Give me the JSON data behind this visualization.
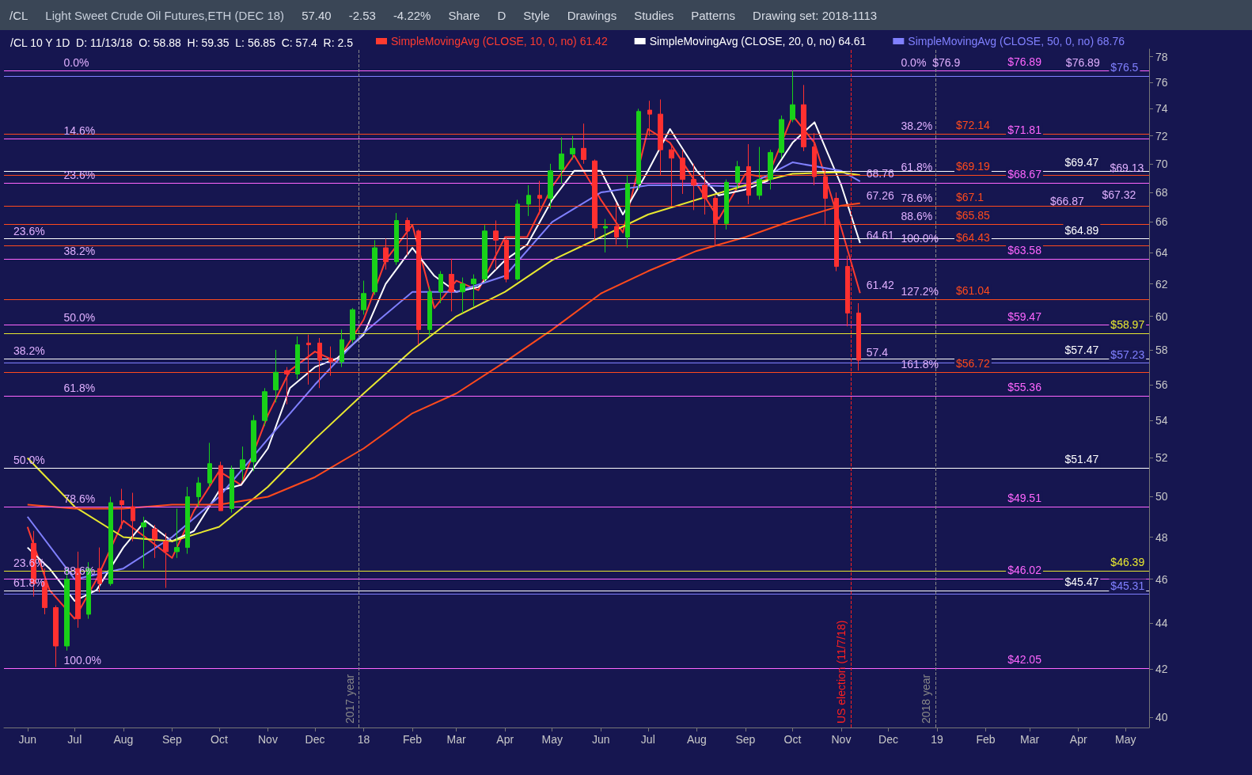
{
  "chart_data": {
    "type": "candlestick",
    "title": "Light Sweet Crude Oil Futures,ETH (DEC 18)",
    "subtitle": "/CL 10 Y 1D  D: 11/13/18  O: 58.88  H: 59.35  L: 56.85  C: 57.4  R: 2.5",
    "log": "y",
    "grid": false,
    "legend": "top",
    "xlim": [
      "2017-05-17",
      "2019-05-16"
    ],
    "xticks": [
      {
        "value": "2017-06-01",
        "label": "Jun"
      },
      {
        "value": "2017-07-01",
        "label": "Jul"
      },
      {
        "value": "2017-08-01",
        "label": "Aug"
      },
      {
        "value": "2017-09-01",
        "label": "Sep"
      },
      {
        "value": "2017-10-01",
        "label": "Oct"
      },
      {
        "value": "2017-11-01",
        "label": "Nov"
      },
      {
        "value": "2017-12-01",
        "label": "Dec"
      },
      {
        "value": "2018-01-01",
        "label": "18"
      },
      {
        "value": "2018-02-01",
        "label": "Feb"
      },
      {
        "value": "2018-03-01",
        "label": "Mar"
      },
      {
        "value": "2018-04-01",
        "label": "Apr"
      },
      {
        "value": "2018-05-01",
        "label": "May"
      },
      {
        "value": "2018-06-01",
        "label": "Jun"
      },
      {
        "value": "2018-07-01",
        "label": "Jul"
      },
      {
        "value": "2018-08-01",
        "label": "Aug"
      },
      {
        "value": "2018-09-01",
        "label": "Sep"
      },
      {
        "value": "2018-10-01",
        "label": "Oct"
      },
      {
        "value": "2018-11-01",
        "label": "Nov"
      },
      {
        "value": "2018-12-01",
        "label": "Dec"
      },
      {
        "value": "2019-01-01",
        "label": "19"
      },
      {
        "value": "2019-02-01",
        "label": "Feb"
      },
      {
        "value": "2019-03-01",
        "label": "Mar"
      },
      {
        "value": "2019-04-01",
        "label": "Apr"
      },
      {
        "value": "2019-05-01",
        "label": "May"
      }
    ],
    "ylim": [
      39.6,
      78.6
    ],
    "yticks": [
      40,
      42,
      44,
      46,
      48,
      50,
      52,
      54,
      56,
      58,
      60,
      62,
      64,
      66,
      68,
      70,
      72,
      74,
      76,
      78
    ],
    "series": [
      {
        "type": "candlestick",
        "x": [
          "2017-06-05",
          "2017-06-12",
          "2017-06-19",
          "2017-06-26",
          "2017-07-03",
          "2017-07-10",
          "2017-07-17",
          "2017-07-24",
          "2017-07-31",
          "2017-08-07",
          "2017-08-14",
          "2017-08-21",
          "2017-08-28",
          "2017-09-04",
          "2017-09-11",
          "2017-09-18",
          "2017-09-25",
          "2017-10-02",
          "2017-10-09",
          "2017-10-16",
          "2017-10-23",
          "2017-10-30",
          "2017-11-06",
          "2017-11-13",
          "2017-11-20",
          "2017-11-27",
          "2017-12-04",
          "2017-12-11",
          "2017-12-18",
          "2017-12-25",
          "2018-01-01",
          "2018-01-08",
          "2018-01-15",
          "2018-01-22",
          "2018-01-29",
          "2018-02-05",
          "2018-02-12",
          "2018-02-19",
          "2018-02-26",
          "2018-03-05",
          "2018-03-12",
          "2018-03-19",
          "2018-03-26",
          "2018-04-02",
          "2018-04-09",
          "2018-04-16",
          "2018-04-23",
          "2018-04-30",
          "2018-05-07",
          "2018-05-14",
          "2018-05-21",
          "2018-05-28",
          "2018-06-04",
          "2018-06-11",
          "2018-06-18",
          "2018-06-25",
          "2018-07-02",
          "2018-07-09",
          "2018-07-16",
          "2018-07-23",
          "2018-07-30",
          "2018-08-06",
          "2018-08-13",
          "2018-08-20",
          "2018-08-27",
          "2018-09-03",
          "2018-09-10",
          "2018-09-17",
          "2018-09-24",
          "2018-10-01",
          "2018-10-08",
          "2018-10-15",
          "2018-10-22",
          "2018-10-29",
          "2018-11-05",
          "2018-11-12"
        ],
        "ohlc": [
          [
            47.7,
            48.3,
            45.2,
            45.8
          ],
          [
            45.9,
            46.5,
            44.4,
            44.7
          ],
          [
            44.7,
            44.8,
            42.1,
            43.0
          ],
          [
            43.0,
            46.5,
            42.8,
            46.0
          ],
          [
            46.5,
            47.3,
            43.8,
            44.2
          ],
          [
            44.4,
            46.8,
            44.2,
            46.5
          ],
          [
            46.5,
            47.5,
            45.4,
            45.8
          ],
          [
            45.8,
            50.0,
            45.7,
            49.7
          ],
          [
            49.8,
            50.4,
            48.4,
            49.6
          ],
          [
            49.5,
            50.2,
            47.8,
            48.8
          ],
          [
            48.5,
            49.0,
            46.5,
            48.7
          ],
          [
            48.4,
            48.6,
            47.0,
            47.9
          ],
          [
            47.8,
            48.2,
            45.6,
            47.3
          ],
          [
            47.3,
            49.4,
            47.0,
            47.5
          ],
          [
            47.5,
            50.5,
            47.2,
            50.0
          ],
          [
            50.0,
            51.0,
            49.5,
            50.7
          ],
          [
            50.7,
            52.8,
            50.5,
            51.7
          ],
          [
            51.6,
            51.8,
            49.3,
            49.3
          ],
          [
            49.4,
            51.6,
            49.2,
            51.4
          ],
          [
            51.4,
            52.6,
            50.8,
            51.9
          ],
          [
            51.8,
            54.3,
            51.3,
            54.0
          ],
          [
            54.0,
            55.8,
            53.7,
            55.6
          ],
          [
            55.7,
            58.0,
            55.0,
            56.7
          ],
          [
            56.8,
            57.0,
            54.9,
            56.6
          ],
          [
            56.6,
            58.8,
            56.3,
            58.3
          ],
          [
            58.4,
            58.9,
            56.0,
            58.3
          ],
          [
            58.4,
            58.7,
            55.8,
            57.4
          ],
          [
            57.5,
            58.2,
            56.5,
            57.3
          ],
          [
            57.3,
            59.2,
            57.0,
            58.6
          ],
          [
            58.6,
            60.5,
            58.4,
            60.4
          ],
          [
            60.4,
            62.2,
            60.1,
            61.4
          ],
          [
            61.5,
            64.8,
            61.3,
            64.3
          ],
          [
            64.3,
            64.9,
            62.9,
            63.4
          ],
          [
            63.4,
            66.6,
            63.2,
            66.1
          ],
          [
            66.1,
            66.3,
            63.8,
            65.4
          ],
          [
            65.4,
            65.5,
            58.3,
            59.2
          ],
          [
            59.2,
            61.8,
            58.8,
            61.5
          ],
          [
            61.5,
            62.8,
            60.8,
            62.6
          ],
          [
            62.6,
            63.6,
            60.3,
            61.5
          ],
          [
            61.5,
            62.4,
            60.2,
            62.0
          ],
          [
            62.0,
            62.6,
            60.6,
            62.3
          ],
          [
            62.3,
            65.8,
            62.1,
            65.4
          ],
          [
            65.4,
            66.1,
            62.9,
            64.8
          ],
          [
            64.8,
            65.0,
            62.1,
            62.3
          ],
          [
            62.3,
            67.5,
            62.2,
            67.2
          ],
          [
            67.2,
            68.5,
            66.4,
            67.8
          ],
          [
            67.8,
            68.8,
            66.5,
            67.6
          ],
          [
            67.6,
            70.0,
            66.9,
            69.5
          ],
          [
            69.6,
            71.9,
            68.6,
            70.7
          ],
          [
            70.7,
            72.0,
            70.3,
            71.1
          ],
          [
            71.1,
            72.9,
            70.0,
            70.3
          ],
          [
            70.2,
            70.3,
            64.8,
            65.6
          ],
          [
            65.6,
            66.2,
            64.0,
            65.7
          ],
          [
            65.7,
            67.3,
            64.5,
            65.0
          ],
          [
            65.0,
            69.2,
            64.3,
            68.6
          ],
          [
            68.6,
            74.0,
            68.2,
            73.8
          ],
          [
            73.9,
            74.6,
            72.0,
            73.6
          ],
          [
            73.6,
            74.7,
            69.2,
            71.0
          ],
          [
            71.0,
            71.4,
            67.1,
            70.4
          ],
          [
            70.4,
            71.0,
            67.9,
            68.9
          ],
          [
            68.9,
            70.0,
            66.8,
            68.5
          ],
          [
            68.5,
            69.5,
            66.5,
            67.6
          ],
          [
            67.6,
            67.8,
            64.4,
            65.9
          ],
          [
            65.9,
            68.9,
            65.5,
            68.7
          ],
          [
            68.7,
            70.2,
            68.2,
            69.8
          ],
          [
            69.8,
            71.4,
            67.2,
            67.8
          ],
          [
            67.8,
            71.2,
            67.5,
            68.9
          ],
          [
            68.9,
            71.0,
            68.2,
            70.8
          ],
          [
            70.8,
            73.5,
            70.4,
            73.2
          ],
          [
            73.2,
            76.9,
            73.0,
            74.3
          ],
          [
            74.3,
            75.8,
            70.9,
            71.2
          ],
          [
            71.2,
            72.2,
            68.5,
            69.1
          ],
          [
            69.1,
            69.6,
            65.8,
            67.6
          ],
          [
            67.6,
            68.0,
            62.8,
            63.1
          ],
          [
            63.1,
            63.8,
            59.4,
            60.2
          ],
          [
            60.2,
            60.8,
            56.8,
            57.4
          ]
        ],
        "colors": [
          "#ff3030",
          "#ff3030",
          "#ff3030",
          "#19d119",
          "#ff3030",
          "#19d119",
          "#ff3030",
          "#19d119",
          "#ff3030",
          "#ff3030",
          "#19d119",
          "#ff3030",
          "#ff3030",
          "#19d119",
          "#19d119",
          "#19d119",
          "#19d119",
          "#ff3030",
          "#19d119",
          "#19d119",
          "#19d119",
          "#19d119",
          "#19d119",
          "#ff3030",
          "#19d119",
          "#ff3030",
          "#ff3030",
          "#ff3030",
          "#19d119",
          "#19d119",
          "#19d119",
          "#19d119",
          "#ff3030",
          "#19d119",
          "#ff3030",
          "#ff3030",
          "#19d119",
          "#19d119",
          "#ff3030",
          "#19d119",
          "#19d119",
          "#19d119",
          "#ff3030",
          "#ff3030",
          "#19d119",
          "#19d119",
          "#ff3030",
          "#19d119",
          "#19d119",
          "#19d119",
          "#ff3030",
          "#ff3030",
          "#19d119",
          "#ff3030",
          "#19d119",
          "#19d119",
          "#ff3030",
          "#ff3030",
          "#ff3030",
          "#ff3030",
          "#ff3030",
          "#ff3030",
          "#ff3030",
          "#19d119",
          "#19d119",
          "#ff3030",
          "#19d119",
          "#19d119",
          "#19d119",
          "#19d119",
          "#ff3030",
          "#ff3030",
          "#ff3030",
          "#ff3030",
          "#ff3030",
          "#ff3030"
        ]
      },
      {
        "type": "line",
        "name": "SimpleMovingAvg (CLOSE, 10, 0, no) 61.42",
        "color": "#ff3b30",
        "x": [
          "2017-06-01",
          "2017-06-15",
          "2017-07-01",
          "2017-07-15",
          "2017-08-01",
          "2017-08-15",
          "2017-09-01",
          "2017-09-15",
          "2017-10-01",
          "2017-10-15",
          "2017-11-01",
          "2017-11-15",
          "2017-12-01",
          "2017-12-15",
          "2018-01-01",
          "2018-01-15",
          "2018-02-01",
          "2018-02-15",
          "2018-03-01",
          "2018-03-15",
          "2018-04-01",
          "2018-04-15",
          "2018-05-01",
          "2018-05-15",
          "2018-06-01",
          "2018-06-15",
          "2018-07-01",
          "2018-07-15",
          "2018-08-01",
          "2018-08-15",
          "2018-09-01",
          "2018-09-15",
          "2018-10-01",
          "2018-10-15",
          "2018-11-01",
          "2018-11-13"
        ],
        "values": [
          48.5,
          45.5,
          44.2,
          46.0,
          48.8,
          48.0,
          47.0,
          49.3,
          51.3,
          50.6,
          54.3,
          56.8,
          57.9,
          57.3,
          59.8,
          63.5,
          65.8,
          60.5,
          62.2,
          61.6,
          65.0,
          65.0,
          68.4,
          70.6,
          67.5,
          65.3,
          72.5,
          71.5,
          68.6,
          66.2,
          69.3,
          69.0,
          73.5,
          71.5,
          65.6,
          61.42
        ]
      },
      {
        "type": "line",
        "name": "SimpleMovingAvg (CLOSE, 20, 0, no) 64.61",
        "color": "#ffffff",
        "x": [
          "2017-06-01",
          "2017-06-15",
          "2017-07-01",
          "2017-07-15",
          "2017-08-01",
          "2017-08-15",
          "2017-09-01",
          "2017-09-15",
          "2017-10-01",
          "2017-10-15",
          "2017-11-01",
          "2017-11-15",
          "2017-12-01",
          "2017-12-15",
          "2018-01-01",
          "2018-01-15",
          "2018-02-01",
          "2018-02-15",
          "2018-03-01",
          "2018-03-15",
          "2018-04-01",
          "2018-04-15",
          "2018-05-01",
          "2018-05-15",
          "2018-06-01",
          "2018-06-15",
          "2018-07-01",
          "2018-07-15",
          "2018-08-01",
          "2018-08-15",
          "2018-09-01",
          "2018-09-15",
          "2018-10-01",
          "2018-10-15",
          "2018-11-01",
          "2018-11-13"
        ],
        "values": [
          47.5,
          46.5,
          45.0,
          45.5,
          47.5,
          48.8,
          47.8,
          48.3,
          50.3,
          50.6,
          52.5,
          55.8,
          57.0,
          57.5,
          58.9,
          62.0,
          64.3,
          62.5,
          61.5,
          61.8,
          63.5,
          64.5,
          67.5,
          69.5,
          69.5,
          66.5,
          69.5,
          72.5,
          69.5,
          67.8,
          68.2,
          68.8,
          71.5,
          73.0,
          68.5,
          64.61
        ]
      },
      {
        "type": "line",
        "name": "SimpleMovingAvg (CLOSE, 50, 0, no) 68.76",
        "color": "#8080ff",
        "x": [
          "2017-06-01",
          "2017-07-01",
          "2017-08-01",
          "2017-09-01",
          "2017-10-01",
          "2017-11-01",
          "2017-12-01",
          "2018-01-01",
          "2018-02-01",
          "2018-03-01",
          "2018-04-01",
          "2018-05-01",
          "2018-06-01",
          "2018-07-01",
          "2018-08-01",
          "2018-09-01",
          "2018-10-01",
          "2018-11-01",
          "2018-11-13"
        ],
        "values": [
          49.0,
          46.0,
          46.5,
          48.0,
          50.0,
          53.0,
          56.0,
          59.0,
          61.5,
          61.5,
          62.5,
          66.0,
          68.0,
          68.5,
          68.5,
          68.4,
          70.1,
          69.5,
          68.76
        ]
      },
      {
        "type": "line",
        "color": "#e8e830",
        "x": [
          "2017-06-01",
          "2017-07-01",
          "2017-08-01",
          "2017-09-01",
          "2017-10-01",
          "2017-11-01",
          "2017-12-01",
          "2018-01-01",
          "2018-02-01",
          "2018-03-01",
          "2018-04-01",
          "2018-05-01",
          "2018-06-01",
          "2018-07-01",
          "2018-08-01",
          "2018-09-01",
          "2018-10-01",
          "2018-11-01",
          "2018-11-13"
        ],
        "values": [
          52.0,
          49.5,
          48.0,
          47.8,
          48.5,
          50.5,
          53.0,
          55.5,
          58.0,
          60.0,
          61.5,
          63.5,
          65.0,
          66.5,
          67.5,
          68.5,
          69.3,
          69.4,
          69.2
        ]
      },
      {
        "type": "line",
        "color": "#ff4a1c",
        "x": [
          "2017-06-01",
          "2017-07-01",
          "2017-08-01",
          "2017-09-01",
          "2017-10-01",
          "2017-11-01",
          "2017-12-01",
          "2018-01-01",
          "2018-02-01",
          "2018-03-01",
          "2018-04-01",
          "2018-05-01",
          "2018-06-01",
          "2018-07-01",
          "2018-08-01",
          "2018-09-01",
          "2018-10-01",
          "2018-11-01",
          "2018-11-13"
        ],
        "values": [
          49.6,
          49.4,
          49.4,
          49.6,
          49.6,
          50.0,
          51.0,
          52.5,
          54.4,
          55.5,
          57.3,
          59.2,
          61.4,
          62.8,
          64.1,
          65.0,
          66.1,
          67.1,
          67.26
        ]
      }
    ],
    "ref_lines": [
      {
        "axis": "y",
        "value": 72.14,
        "label": "$72.14",
        "color": "#ff4a1c"
      },
      {
        "axis": "y",
        "value": 69.19,
        "label": "$69.19",
        "color": "#ff4a1c"
      },
      {
        "axis": "y",
        "value": 67.1,
        "label": "$67.1",
        "color": "#ff4a1c"
      },
      {
        "axis": "y",
        "value": 65.85,
        "label": "$65.85",
        "color": "#ff4a1c"
      },
      {
        "axis": "y",
        "value": 64.43,
        "label": "$64.43",
        "color": "#ff4a1c"
      },
      {
        "axis": "y",
        "value": 61.04,
        "label": "$61.04",
        "color": "#ff4a1c"
      },
      {
        "axis": "y",
        "value": 56.72,
        "label": "$56.72",
        "color": "#ff4a1c"
      },
      {
        "axis": "y",
        "value": 76.89,
        "label": "$76.89",
        "color": "#ff66ff"
      },
      {
        "axis": "y",
        "value": 71.81,
        "label": "$71.81",
        "color": "#ff66ff"
      },
      {
        "axis": "y",
        "value": 68.67,
        "label": "$68.67",
        "color": "#ff66ff"
      },
      {
        "axis": "y",
        "value": 63.58,
        "label": "$63.58",
        "color": "#ff66ff"
      },
      {
        "axis": "y",
        "value": 59.47,
        "label": "$59.47",
        "color": "#ff66ff"
      },
      {
        "axis": "y",
        "value": 55.36,
        "label": "$55.36",
        "color": "#ff66ff"
      },
      {
        "axis": "y",
        "value": 49.51,
        "label": "$49.51",
        "color": "#ff66ff"
      },
      {
        "axis": "y",
        "value": 46.02,
        "label": "$46.02",
        "color": "#ff66ff"
      },
      {
        "axis": "y",
        "value": 42.05,
        "label": "$42.05",
        "color": "#ff66ff"
      },
      {
        "axis": "y",
        "value": 69.47,
        "label": "$69.47",
        "color": "#ffffff"
      },
      {
        "axis": "y",
        "value": 64.89,
        "label": "$64.89",
        "color": "#ffffff"
      },
      {
        "axis": "y",
        "value": 57.47,
        "label": "$57.47",
        "color": "#ffffff"
      },
      {
        "axis": "y",
        "value": 51.47,
        "label": "$51.47",
        "color": "#ffffff"
      },
      {
        "axis": "y",
        "value": 45.47,
        "label": "$45.47",
        "color": "#ffffff"
      },
      {
        "axis": "y",
        "value": 58.97,
        "label": "$58.97",
        "color": "#e8e830"
      },
      {
        "axis": "y",
        "value": 46.39,
        "label": "$46.39",
        "color": "#e8e830"
      },
      {
        "axis": "y",
        "value": 76.5,
        "label": "$76.5",
        "color": "#8080ff"
      },
      {
        "axis": "y",
        "value": 57.23,
        "label": "$57.23",
        "color": "#8080ff"
      },
      {
        "axis": "y",
        "value": 45.31,
        "label": "$45.31",
        "color": "#8080ff"
      },
      {
        "axis": "x",
        "value": "2017-12-29",
        "label": "2017 year",
        "color": "#888888",
        "line_style": "dashed"
      },
      {
        "axis": "x",
        "value": "2018-11-07",
        "label": "US election (11/7/18)",
        "color": "#ff2020",
        "line_style": "dashed"
      },
      {
        "axis": "x",
        "value": "2018-12-31",
        "label": "2018 year",
        "color": "#888888",
        "line_style": "dashed"
      }
    ],
    "annotations": [
      "/CL",
      "57.40",
      "-2.53",
      "-4.22%",
      "Share",
      "D",
      "Style",
      "Drawings",
      "Studies",
      "Patterns",
      "Drawing set: 2018-1113",
      {
        "text": "$76.9",
        "x": "2018-12-25",
        "y": 76.9
      },
      {
        "text": "$76.89",
        "x": "2019-03-20",
        "y": 76.89
      },
      {
        "text": "$69.13",
        "x": "2019-04-17",
        "y": 69.13
      },
      {
        "text": "$67.32",
        "x": "2019-04-12",
        "y": 67.32
      },
      {
        "text": "$66.87",
        "x": "2019-03-10",
        "y": 66.87
      },
      {
        "text": "68.76",
        "x": "2018-11-13",
        "y": 68.76
      },
      {
        "text": "67.26",
        "x": "2018-11-13",
        "y": 67.26
      },
      {
        "text": "64.61",
        "x": "2018-11-13",
        "y": 64.61
      },
      {
        "text": "61.42",
        "x": "2018-11-13",
        "y": 61.42
      },
      {
        "text": "57.4",
        "x": "2018-11-13",
        "y": 57.4
      },
      {
        "text": "0.0%",
        "x": "2017-06-20",
        "y": 76.89
      },
      {
        "text": "14.6%",
        "x": "2017-06-20",
        "y": 71.81
      },
      {
        "text": "23.6%",
        "x": "2017-06-20",
        "y": 68.67
      },
      {
        "text": "38.2%",
        "x": "2017-06-20",
        "y": 63.58
      },
      {
        "text": "50.0%",
        "x": "2017-06-20",
        "y": 59.47
      },
      {
        "text": "61.8%",
        "x": "2017-06-20",
        "y": 55.36
      },
      {
        "text": "78.6%",
        "x": "2017-06-20",
        "y": 49.51
      },
      {
        "text": "88.6%",
        "x": "2017-06-20",
        "y": 46.02
      },
      {
        "text": "100.0%",
        "x": "2017-06-20",
        "y": 42.05
      },
      {
        "text": "23.6%",
        "x": "2017-05-19",
        "y": 64.89
      },
      {
        "text": "38.2%",
        "x": "2017-05-19",
        "y": 57.47
      },
      {
        "text": "50.0%",
        "x": "2017-05-19",
        "y": 51.47
      },
      {
        "text": "61.8%",
        "x": "2017-05-19",
        "y": 45.47
      },
      {
        "text": "23.6%",
        "x": "2017-05-19",
        "y": 46.39
      },
      {
        "text": "0.0%",
        "x": "2018-12-05",
        "y": 76.9
      },
      {
        "text": "38.2%",
        "x": "2018-12-05",
        "y": 72.14
      },
      {
        "text": "61.8%",
        "x": "2018-12-05",
        "y": 69.19
      },
      {
        "text": "78.6%",
        "x": "2018-12-05",
        "y": 67.1
      },
      {
        "text": "88.6%",
        "x": "2018-12-05",
        "y": 65.85
      },
      {
        "text": "100.0%",
        "x": "2018-12-05",
        "y": 64.43
      },
      {
        "text": "127.2%",
        "x": "2018-12-05",
        "y": 61.04
      },
      {
        "text": "161.8%",
        "x": "2018-12-05",
        "y": 56.72
      }
    ]
  }
}
